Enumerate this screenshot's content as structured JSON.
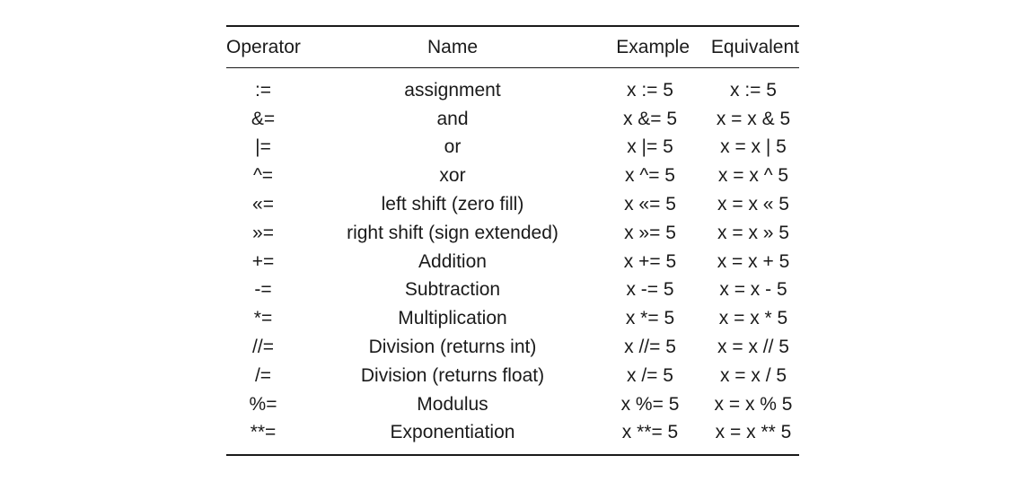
{
  "table": {
    "headers": {
      "operator": "Operator",
      "name": "Name",
      "example": "Example",
      "equivalent": "Equivalent"
    },
    "rows": [
      {
        "operator": ":=",
        "name": "assignment",
        "example": "x := 5",
        "equivalent": "x := 5"
      },
      {
        "operator": "&=",
        "name": "and",
        "example": "x &= 5",
        "equivalent": "x = x & 5"
      },
      {
        "operator": "|=",
        "name": "or",
        "example": "x |= 5",
        "equivalent": "x = x | 5"
      },
      {
        "operator": "^=",
        "name": "xor",
        "example": "x ^= 5",
        "equivalent": "x = x ^ 5"
      },
      {
        "operator": "«=",
        "name": "left shift (zero fill)",
        "example": "x «= 5",
        "equivalent": "x = x « 5"
      },
      {
        "operator": "»=",
        "name": "right shift (sign extended)",
        "example": "x »= 5",
        "equivalent": "x = x » 5"
      },
      {
        "operator": "+=",
        "name": "Addition",
        "example": "x += 5",
        "equivalent": "x = x + 5"
      },
      {
        "operator": "-=",
        "name": "Subtraction",
        "example": "x -= 5",
        "equivalent": "x = x - 5"
      },
      {
        "operator": "*=",
        "name": "Multiplication",
        "example": "x *= 5",
        "equivalent": "x = x * 5"
      },
      {
        "operator": "//=",
        "name": "Division (returns int)",
        "example": "x //= 5",
        "equivalent": "x = x // 5"
      },
      {
        "operator": "/=",
        "name": "Division (returns float)",
        "example": "x /= 5",
        "equivalent": "x = x / 5"
      },
      {
        "operator": "%=",
        "name": "Modulus",
        "example": "x %= 5",
        "equivalent": "x = x % 5"
      },
      {
        "operator": "**=",
        "name": "Exponentiation",
        "example": "x **= 5",
        "equivalent": "x = x ** 5"
      }
    ]
  }
}
